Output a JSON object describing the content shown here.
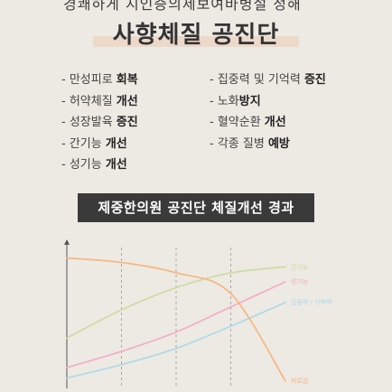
{
  "header": {
    "top_band_text": "경쾌하게 지인증의제보여바병설 정해",
    "title": "사향체질 공진단"
  },
  "benefits": {
    "left": [
      {
        "plain": "- 만성피로 ",
        "highlight": "회복"
      },
      {
        "plain": "- 허약체질 ",
        "highlight": "개선"
      },
      {
        "plain": "- 성장발육 ",
        "highlight": "증진"
      },
      {
        "plain": "- 간기능 ",
        "highlight": "개선"
      },
      {
        "plain": "- 성기능 ",
        "highlight": "개선"
      }
    ],
    "right": [
      {
        "plain": "- 집중력 및 기억력 ",
        "highlight": "증진"
      },
      {
        "plain": "- 노화",
        "highlight": "방지"
      },
      {
        "plain": "- 혈약순환 ",
        "highlight": "개선"
      },
      {
        "plain": "- 각종 질병 ",
        "highlight": "예방"
      }
    ]
  },
  "section": {
    "title": "제중한의원 공진단 체질개선 경과"
  },
  "chart_data": {
    "type": "line",
    "title": "",
    "xlabel": "",
    "ylabel": "",
    "grid": "vertical dashed",
    "legend": "inline labels at right end",
    "x": [
      0,
      1,
      2,
      3,
      4
    ],
    "ylim": [
      0,
      100
    ],
    "series": [
      {
        "name": "간기능",
        "color": "#c9dc9c",
        "values": [
          34,
          53,
          68,
          78,
          82
        ]
      },
      {
        "name": "성기능",
        "color": "#f2a9c4",
        "values": [
          14,
          25,
          38,
          55,
          72
        ]
      },
      {
        "name": "집중력 / 기억력",
        "color": "#a9d9ec",
        "values": [
          7,
          16,
          27,
          42,
          58
        ]
      },
      {
        "name": "피로감",
        "color": "#f6b57a",
        "values": [
          88,
          85,
          78,
          64,
          5
        ]
      }
    ]
  }
}
